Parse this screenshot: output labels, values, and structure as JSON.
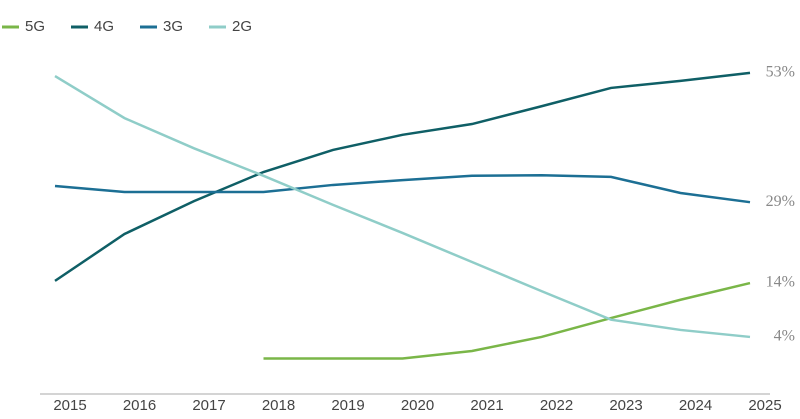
{
  "chart_data": {
    "type": "line",
    "categories": [
      "2015",
      "2016",
      "2017",
      "2018",
      "2019",
      "2020",
      "2021",
      "2022",
      "2023",
      "2024",
      "2025"
    ],
    "legend": "top-left",
    "series": [
      {
        "name": "5G",
        "color": "#7ab648",
        "values": [
          null,
          null,
          null,
          0,
          0,
          0,
          1.4,
          4,
          7.5,
          10.9,
          14
        ],
        "value_labels": [
          null,
          null,
          null,
          null,
          null,
          null,
          null,
          null,
          null,
          null,
          "14%"
        ]
      },
      {
        "name": "4G",
        "color": "#0f5f66",
        "values": [
          14.4,
          23.1,
          29.2,
          34.6,
          38.7,
          41.5,
          43.5,
          46.8,
          50.2,
          51.5,
          53
        ],
        "value_labels": [
          null,
          null,
          null,
          null,
          null,
          null,
          null,
          null,
          null,
          null,
          "53%"
        ]
      },
      {
        "name": "3G",
        "color": "#1c6f94",
        "values": [
          32,
          30.9,
          30.9,
          30.9,
          32.2,
          33.1,
          33.9,
          34,
          33.7,
          30.7,
          29
        ],
        "value_labels": [
          null,
          null,
          null,
          null,
          null,
          null,
          null,
          null,
          null,
          null,
          "29%"
        ]
      },
      {
        "name": "2G",
        "color": "#8fcdc8",
        "values": [
          52.4,
          44.6,
          39,
          33.9,
          28.5,
          23.3,
          17.9,
          12.5,
          7.2,
          5.3,
          4
        ],
        "value_labels": [
          null,
          null,
          null,
          null,
          null,
          null,
          null,
          null,
          null,
          null,
          "4%"
        ]
      }
    ]
  }
}
